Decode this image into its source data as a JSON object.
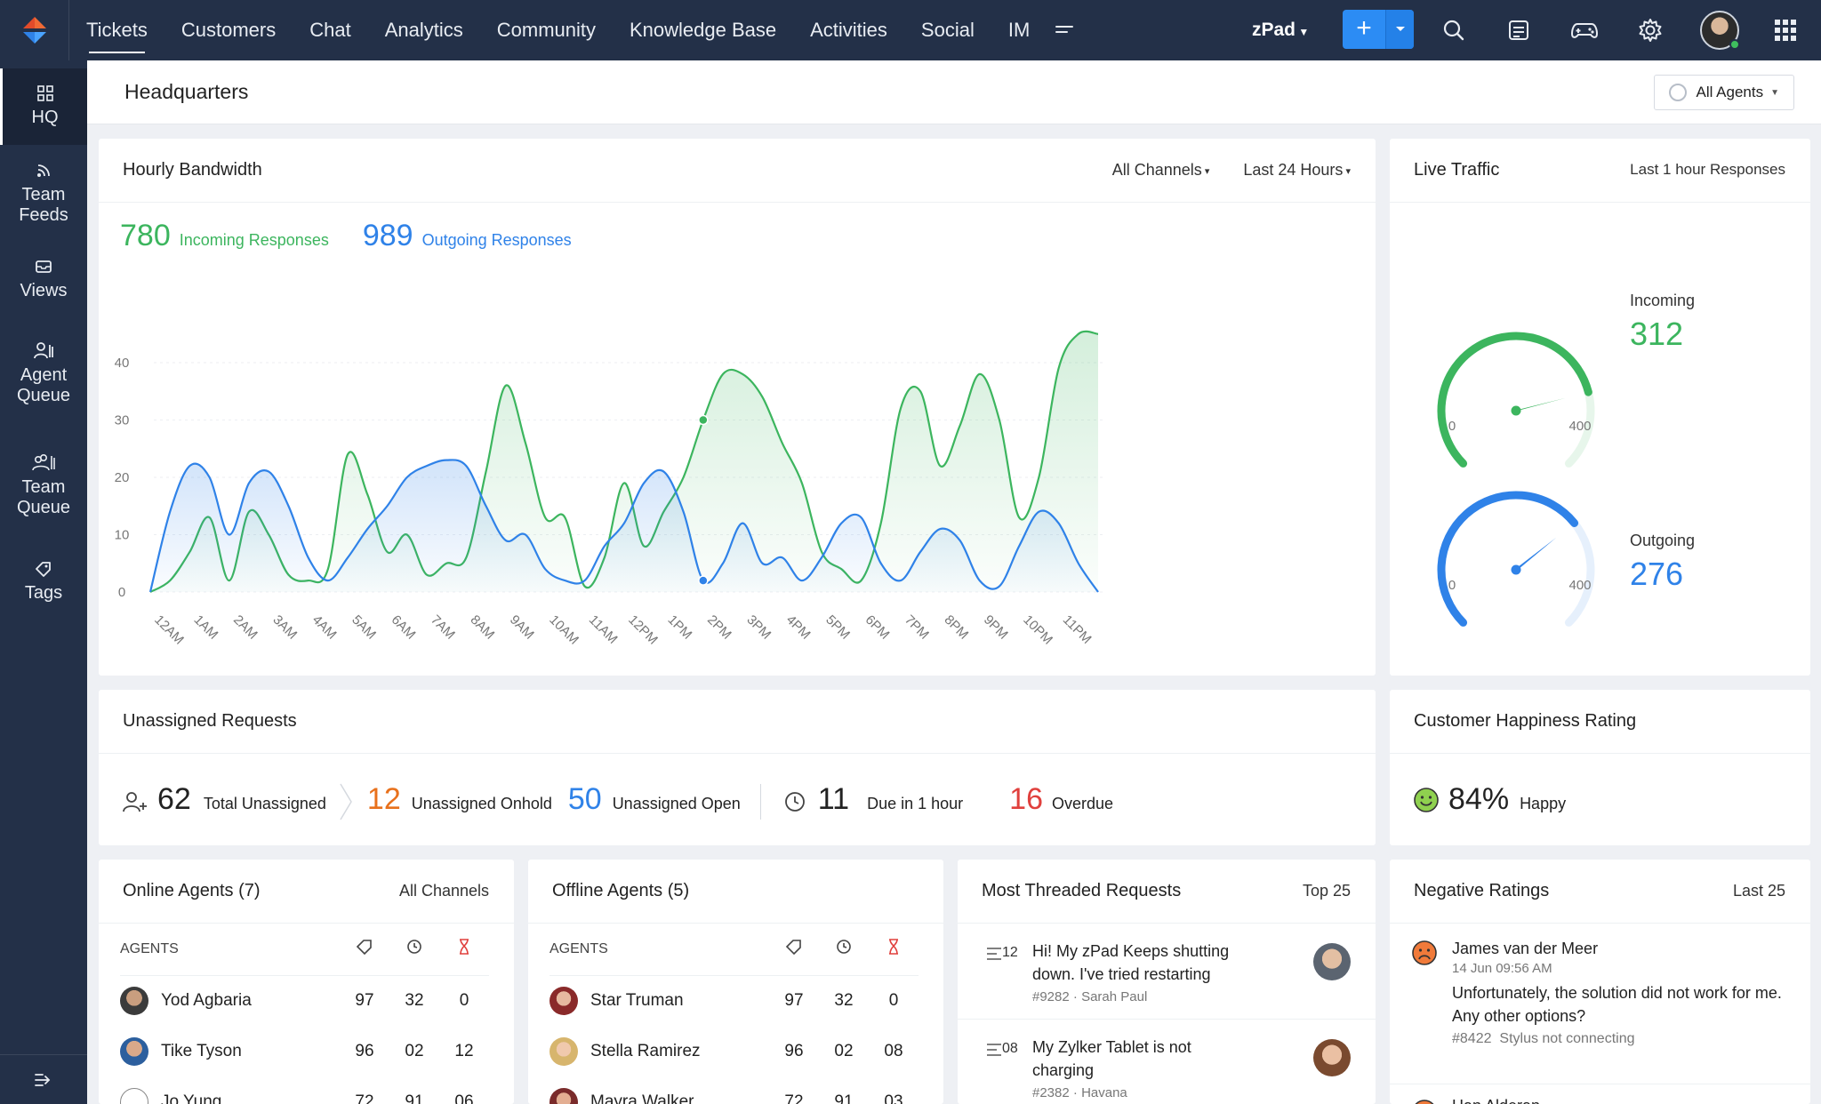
{
  "nav": {
    "items": [
      "Tickets",
      "Customers",
      "Chat",
      "Analytics",
      "Community",
      "Knowledge Base",
      "Activities",
      "Social",
      "IM"
    ],
    "active": "Tickets",
    "department": "zPad"
  },
  "sidebar": {
    "items": [
      {
        "label_lines": [
          "HQ"
        ],
        "icon": "grid-icon"
      },
      {
        "label_lines": [
          "Team",
          "Feeds"
        ],
        "icon": "feed-icon"
      },
      {
        "label_lines": [
          "Views"
        ],
        "icon": "inbox-icon"
      },
      {
        "label_lines": [
          "Agent",
          "Queue"
        ],
        "icon": "agent-queue-icon"
      },
      {
        "label_lines": [
          "Team",
          "Queue"
        ],
        "icon": "team-queue-icon"
      },
      {
        "label_lines": [
          "Tags"
        ],
        "icon": "tag-icon"
      }
    ],
    "active": "HQ"
  },
  "header": {
    "title": "Headquarters",
    "agents_filter": "All Agents"
  },
  "bandwidth": {
    "title": "Hourly Bandwidth",
    "channel_filter": "All Channels",
    "time_filter": "Last 24 Hours",
    "incoming_value": "780",
    "incoming_label": "Incoming Responses",
    "outgoing_value": "989",
    "outgoing_label": "Outgoing Responses"
  },
  "chart_data": {
    "type": "area",
    "categories": [
      "12AM",
      "1AM",
      "2AM",
      "3AM",
      "4AM",
      "5AM",
      "6AM",
      "7AM",
      "8AM",
      "9AM",
      "10AM",
      "11AM",
      "12PM",
      "1PM",
      "2PM",
      "3PM",
      "4PM",
      "5PM",
      "6PM",
      "7PM",
      "8PM",
      "9PM",
      "10PM",
      "11PM"
    ],
    "x": [
      0,
      0.5,
      1,
      1.5,
      2,
      2.5,
      3,
      3.5,
      4,
      4.5,
      5,
      5.5,
      6,
      6.5,
      7,
      7.5,
      8,
      8.5,
      9,
      9.5,
      10,
      10.5,
      11,
      11.5,
      12,
      12.5,
      13,
      13.5,
      14,
      14.5,
      15,
      15.5,
      16,
      16.5,
      17,
      17.5,
      18,
      18.5,
      19,
      19.5,
      20,
      20.5,
      21,
      21.5,
      22,
      22.5,
      23,
      23.5,
      24
    ],
    "series": [
      {
        "color": "#3cb55e",
        "values": [
          0,
          2,
          7,
          13,
          2,
          14,
          10,
          3,
          2,
          4,
          24,
          17,
          7,
          10,
          3,
          5,
          6,
          21,
          36,
          26,
          13,
          13,
          1,
          6,
          19,
          8,
          14,
          20,
          30,
          38,
          38,
          34,
          26,
          19,
          7,
          4,
          2,
          12,
          32,
          35,
          22,
          29,
          38,
          30,
          13,
          20,
          39,
          45,
          45
        ]
      },
      {
        "color": "#2f82e8",
        "values": [
          0,
          14,
          22,
          20,
          10,
          19,
          21,
          15,
          6,
          2,
          6,
          11,
          15,
          20,
          22,
          23,
          22,
          15,
          9,
          10,
          4,
          2,
          2,
          8,
          12,
          19,
          21,
          14,
          2,
          5,
          12,
          5,
          6,
          2,
          6,
          12,
          13,
          5,
          2,
          7,
          11,
          9,
          2,
          1,
          8,
          14,
          12,
          5,
          0
        ]
      }
    ],
    "ylim": [
      0,
      40
    ],
    "yticks": [
      0,
      10,
      20,
      30,
      40
    ],
    "xlabel": "",
    "ylabel": "",
    "grid": true,
    "legend": "none"
  },
  "live_traffic": {
    "title": "Live Traffic",
    "subtitle": "Last 1 hour Responses",
    "incoming": {
      "label": "Incoming",
      "value": "312",
      "min": "0",
      "max": "400",
      "fraction": 0.78,
      "color": "#3cb55e"
    },
    "outgoing": {
      "label": "Outgoing",
      "value": "276",
      "min": "0",
      "max": "400",
      "fraction": 0.69,
      "color": "#2f82e8"
    }
  },
  "unassigned": {
    "title": "Unassigned Requests",
    "total": {
      "value": "62",
      "label": "Total Unassigned"
    },
    "onhold": {
      "value": "12",
      "label": "Unassigned Onhold",
      "color": "#e8711c"
    },
    "open": {
      "value": "50",
      "label": "Unassigned Open",
      "color": "#2f82e8"
    },
    "due": {
      "value": "11",
      "label": "Due in 1 hour"
    },
    "overdue": {
      "value": "16",
      "label": "Overdue",
      "color": "#e0403d"
    }
  },
  "happiness": {
    "title": "Customer Happiness Rating",
    "value": "84%",
    "label": "Happy"
  },
  "online_agents": {
    "title": "Online Agents (7)",
    "filter": "All Channels",
    "col_agents": "AGENTS",
    "rows": [
      {
        "name": "Yod Agbaria",
        "a": "97",
        "b": "32",
        "c": "0"
      },
      {
        "name": "Tike Tyson",
        "a": "96",
        "b": "02",
        "c": "12"
      },
      {
        "name": "Jo Yung",
        "a": "72",
        "b": "91",
        "c": "06"
      }
    ]
  },
  "offline_agents": {
    "title": "Offline Agents (5)",
    "col_agents": "AGENTS",
    "rows": [
      {
        "name": "Star Truman",
        "a": "97",
        "b": "32",
        "c": "0"
      },
      {
        "name": "Stella Ramirez",
        "a": "96",
        "b": "02",
        "c": "08"
      },
      {
        "name": "Mayra Walker",
        "a": "72",
        "b": "91",
        "c": "03"
      }
    ]
  },
  "threaded": {
    "title": "Most Threaded Requests",
    "filter": "Top 25",
    "items": [
      {
        "count": "12",
        "text": "Hi! My zPad Keeps shutting down. I've tried restarting",
        "ticket": "#9282",
        "who": "Sarah Paul"
      },
      {
        "count": "08",
        "text": "My Zylker Tablet is not charging",
        "ticket": "#2382",
        "who": "Havana"
      }
    ]
  },
  "negative": {
    "title": "Negative Ratings",
    "filter": "Last 25",
    "items": [
      {
        "name": "James van der Meer",
        "time": "14 Jun 09:56 AM",
        "text": "Unfortunately, the solution did not work for me. Any other options?",
        "ticket": "#8422",
        "subject": "Stylus not connecting"
      },
      {
        "name": "Han Alderan",
        "time": "",
        "text": "",
        "ticket": "",
        "subject": ""
      }
    ]
  }
}
